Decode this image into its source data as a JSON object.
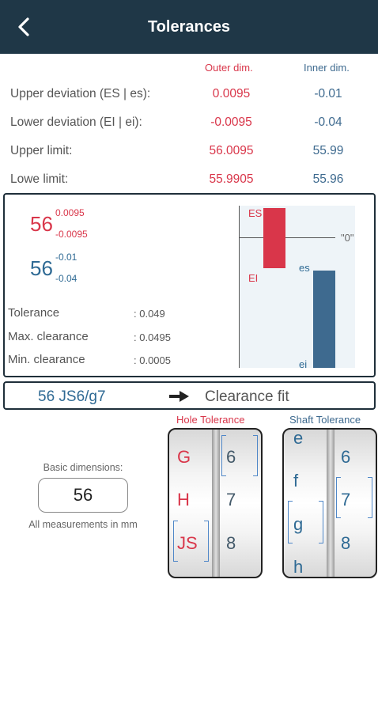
{
  "appbar": {
    "title": "Tolerances"
  },
  "table": {
    "header_outer": "Outer dim.",
    "header_inner": "Inner dim.",
    "rows": [
      {
        "label": "Upper deviation (ES | es):",
        "outer": "0.0095",
        "inner": "-0.01"
      },
      {
        "label": "Lower deviation (EI | ei):",
        "outer": "-0.0095",
        "inner": "-0.04"
      },
      {
        "label": "Upper limit:",
        "outer": "56.0095",
        "inner": "55.99"
      },
      {
        "label": "Lowe limit:",
        "outer": "55.9905",
        "inner": "55.96"
      }
    ]
  },
  "summary": {
    "hole_nominal": "56",
    "hole_upper": "0.0095",
    "hole_lower": "-0.0095",
    "shaft_nominal": "56",
    "shaft_upper": "-0.01",
    "shaft_lower": "-0.04",
    "stats": [
      {
        "label": "Tolerance",
        "value": ": 0.049"
      },
      {
        "label": "Max. clearance",
        "value": ": 0.0495"
      },
      {
        "label": "Min. clearance",
        "value": ": 0.0005"
      }
    ]
  },
  "diagram": {
    "label_ES": "ES",
    "label_EI": "EI",
    "label_es": "es",
    "label_ei": "ei",
    "label_zero": "\"0\"",
    "hole_color": "#d9364a",
    "shaft_color": "#3e6a8f"
  },
  "fit": {
    "code": "56 JS6/g7",
    "result": "Clearance fit"
  },
  "basic": {
    "label": "Basic dimensions:",
    "value": "56",
    "units_note": "All measurements in mm"
  },
  "hole_picker": {
    "title": "Hole Tolerance",
    "letters": [
      "G",
      "H",
      "JS"
    ],
    "numbers": [
      "6",
      "7",
      "8"
    ],
    "selected_letter": "JS",
    "selected_number": "6"
  },
  "shaft_picker": {
    "title": "Shaft Tolerance",
    "letters": [
      "e",
      "f",
      "g",
      "h"
    ],
    "numbers": [
      "6",
      "7",
      "8"
    ],
    "selected_letter": "g",
    "selected_number": "7"
  },
  "colors": {
    "appbar": "#1f3747",
    "red": "#d9364a",
    "blue": "#2f6a94",
    "accent_bracket": "#4f87c8"
  },
  "icons": {
    "back": "chevron-left-icon",
    "arrow": "arrow-right-icon"
  }
}
